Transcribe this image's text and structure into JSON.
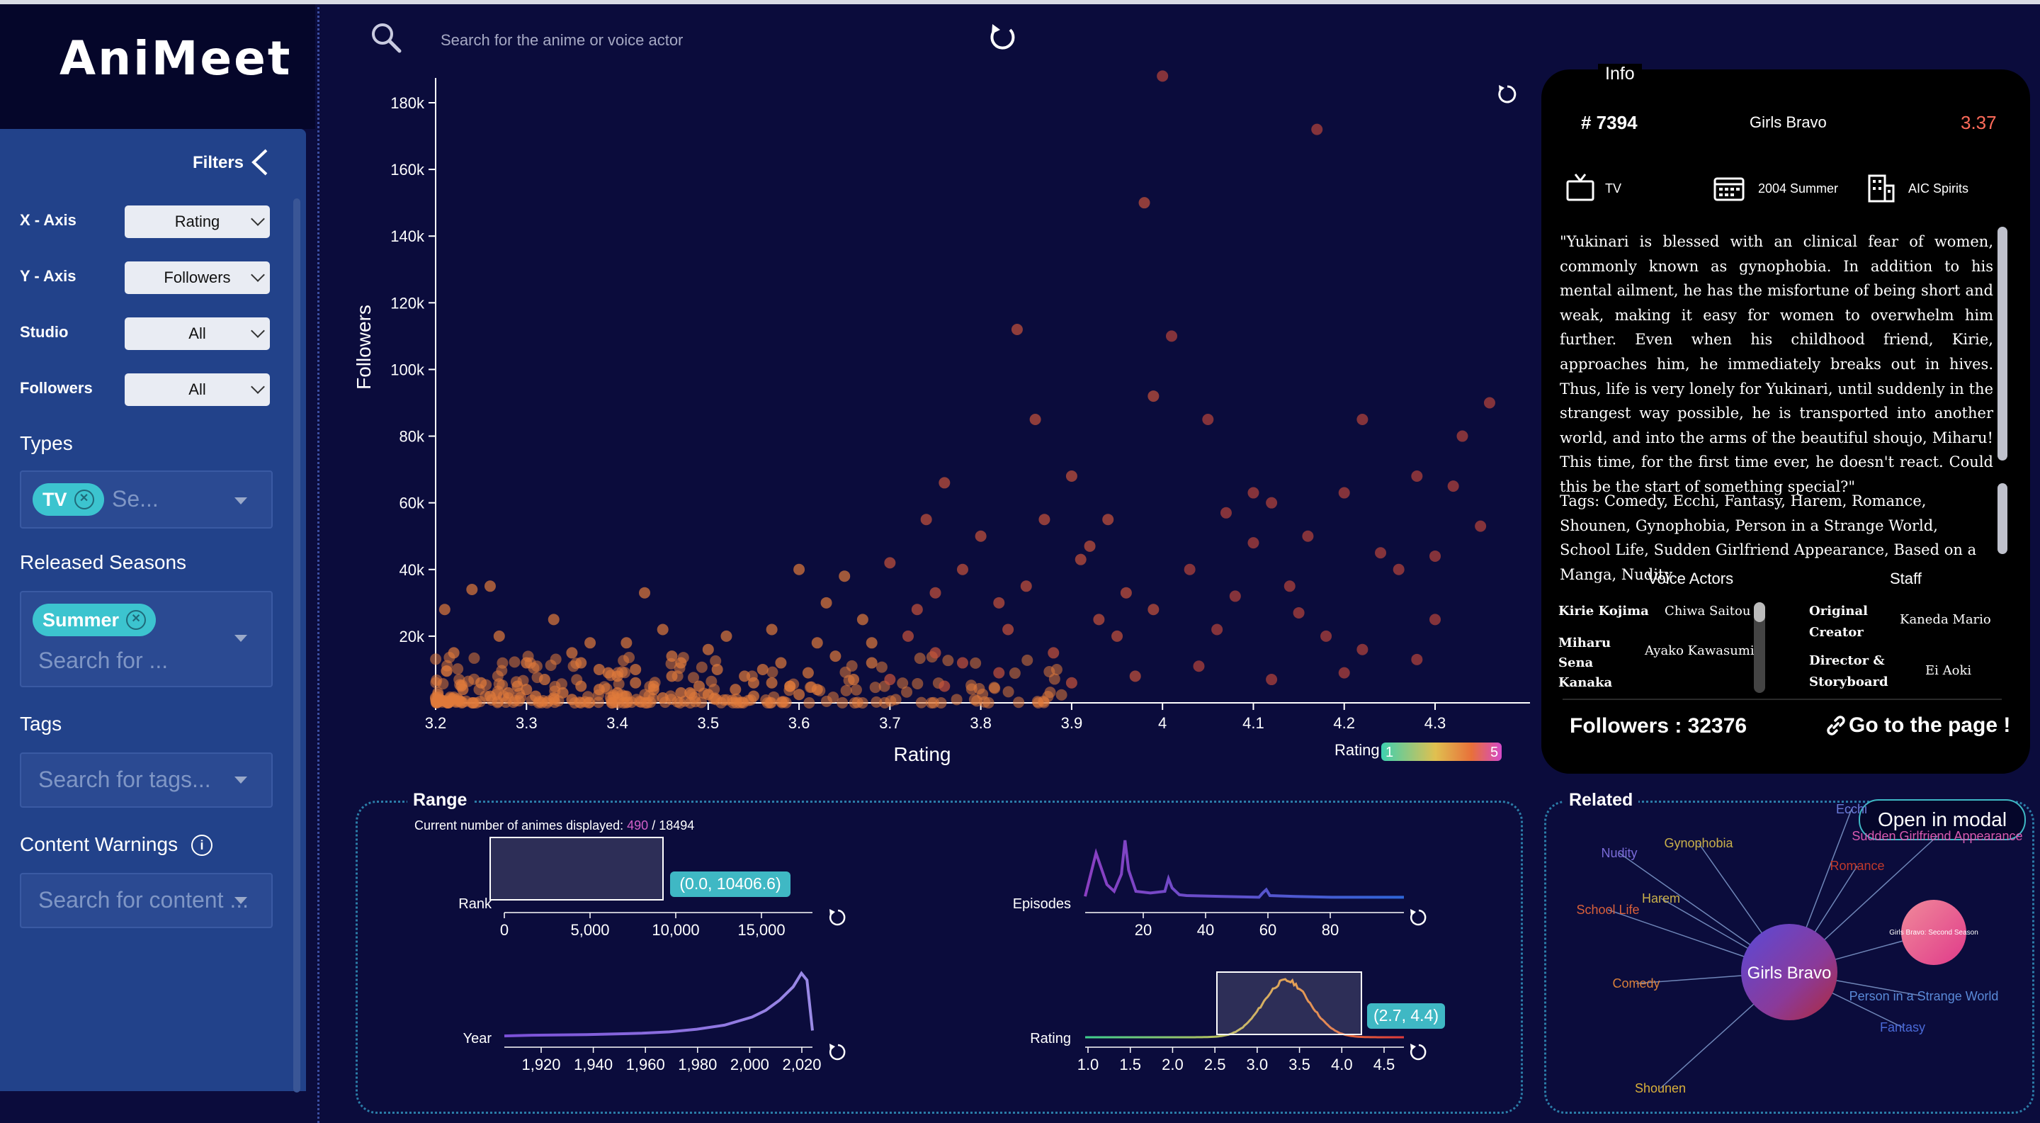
{
  "app": {
    "logo": "AniMeet"
  },
  "search": {
    "placeholder": "Search for the anime or voice actor"
  },
  "filters": {
    "title": "Filters",
    "x_axis": {
      "label": "X - Axis",
      "value": "Rating"
    },
    "y_axis": {
      "label": "Y - Axis",
      "value": "Followers"
    },
    "studio": {
      "label": "Studio",
      "value": "All"
    },
    "followers": {
      "label": "Followers",
      "value": "All"
    },
    "types": {
      "label": "Types",
      "chip": "TV",
      "placeholder": "Se..."
    },
    "seasons": {
      "label": "Released Seasons",
      "chip": "Summer",
      "placeholder": "Search for ..."
    },
    "tags": {
      "label": "Tags",
      "placeholder": "Search for tags..."
    },
    "warnings": {
      "label": "Content Warnings",
      "placeholder": "Search for content ..."
    }
  },
  "scatter": {
    "xlabel": "Rating",
    "ylabel": "Followers",
    "legend_label": "Rating",
    "legend_min": "1",
    "legend_max": "5"
  },
  "info": {
    "title": "Info",
    "rank": "# 7394",
    "name": "Girls Bravo",
    "score": "3.37",
    "type": "TV",
    "season": "2004 Summer",
    "studio": "AIC Spirits",
    "synopsis": "\"Yukinari is blessed with an clinical fear of women, commonly known as gynophobia. In addition to his mental ailment, he has the misfortune of being short and weak, making it easy for women to overwhelm him further. Even when his childhood friend, Kirie, approaches him, he immediately breaks out in hives. Thus, life is very lonely for Yukinari, until suddenly in the strangest way possible, he is transported into another world, and into the arms of the beautiful shoujo, Miharu! This time, for the first time ever, he doesn't react. Could this be the start of something special?\"",
    "tags": "Tags: Comedy, Ecchi, Fantasy, Harem, Romance, Shounen, Gynophobia, Person in a Strange World, School Life, Sudden Girlfriend Appearance, Based on a Manga, Nudity",
    "voice_actors_title": "Voice Actors",
    "staff_title": "Staff",
    "va1_char": "Kirie Kojima",
    "va1_actor": "Chiwa Saitou",
    "va2_char": "Miharu Sena Kanaka",
    "va2_actor": "Ayako Kawasumi",
    "staff1_role": "Original Creator",
    "staff1_name": "Kaneda Mario",
    "staff2_role": "Director & Storyboard",
    "staff2_name": "Ei Aoki",
    "followers": "Followers : 32376",
    "link": "Go to the page !"
  },
  "range": {
    "title": "Range",
    "count_prefix": "Current number of animes displayed: ",
    "count": "490",
    "total": " / 18494",
    "rank_label": "Rank",
    "rank_ticks": [
      "0",
      "5,000",
      "10,000",
      "15,000"
    ],
    "rank_selection": "(0.0, 10406.6)",
    "episodes_label": "Episodes",
    "episodes_ticks": [
      "20",
      "40",
      "60",
      "80"
    ],
    "year_label": "Year",
    "year_ticks": [
      "1,920",
      "1,940",
      "1,960",
      "1,980",
      "2,000",
      "2,020"
    ],
    "rating_label": "Rating",
    "rating_ticks": [
      "1.0",
      "1.5",
      "2.0",
      "2.5",
      "3.0",
      "3.5",
      "4.0",
      "4.5"
    ],
    "rating_selection": "(2.7, 4.4)"
  },
  "related": {
    "title": "Related",
    "open_modal": "Open in modal",
    "center": "Girls Bravo",
    "second": "Girls Bravo: Second Season",
    "tags": [
      {
        "label": "Ecchi",
        "color": "#6a7bd8"
      },
      {
        "label": "Nudity",
        "color": "#7a6bd8"
      },
      {
        "label": "Gynophobia",
        "color": "#c9b04a"
      },
      {
        "label": "Sudden Girlfriend Appearance",
        "color": "#d95ab0"
      },
      {
        "label": "Romance",
        "color": "#c0392b"
      },
      {
        "label": "Harem",
        "color": "#c9b04a"
      },
      {
        "label": "School Life",
        "color": "#d9603a"
      },
      {
        "label": "Comedy",
        "color": "#d9803a"
      },
      {
        "label": "Person in a Strange World",
        "color": "#5a8ad8"
      },
      {
        "label": "Fantasy",
        "color": "#4a6ad8"
      },
      {
        "label": "Shounen",
        "color": "#d9b03a"
      }
    ]
  },
  "chart_data": [
    {
      "type": "scatter",
      "xlabel": "Rating",
      "ylabel": "Followers",
      "xlim": [
        3.2,
        4.36
      ],
      "ylim": [
        0,
        185000
      ],
      "x_ticks": [
        "3.2",
        "3.3",
        "3.4",
        "3.5",
        "3.6",
        "3.7",
        "3.8",
        "3.9",
        "4",
        "4.1",
        "4.2",
        "4.3"
      ],
      "y_ticks": [
        "20k",
        "40k",
        "60k",
        "80k",
        "100k",
        "120k",
        "140k",
        "160k",
        "180k"
      ],
      "points": [
        [
          3.21,
          28000
        ],
        [
          3.24,
          34000
        ],
        [
          3.26,
          35000
        ],
        [
          3.22,
          15000
        ],
        [
          3.27,
          20000
        ],
        [
          3.3,
          12000
        ],
        [
          3.33,
          25000
        ],
        [
          3.35,
          15000
        ],
        [
          3.37,
          18000
        ],
        [
          3.38,
          10000
        ],
        [
          3.41,
          18000
        ],
        [
          3.43,
          33000
        ],
        [
          3.45,
          22000
        ],
        [
          3.47,
          12000
        ],
        [
          3.5,
          16000
        ],
        [
          3.52,
          20000
        ],
        [
          3.54,
          8000
        ],
        [
          3.56,
          10000
        ],
        [
          3.57,
          22000
        ],
        [
          3.6,
          40000
        ],
        [
          3.62,
          18000
        ],
        [
          3.63,
          30000
        ],
        [
          3.65,
          38000
        ],
        [
          3.67,
          25000
        ],
        [
          3.7,
          42000
        ],
        [
          3.72,
          20000
        ],
        [
          3.74,
          55000
        ],
        [
          3.75,
          15000
        ],
        [
          3.76,
          66000
        ],
        [
          3.78,
          40000
        ],
        [
          3.8,
          50000
        ],
        [
          3.82,
          30000
        ],
        [
          3.84,
          112000
        ],
        [
          3.86,
          85000
        ],
        [
          3.87,
          55000
        ],
        [
          3.9,
          68000
        ],
        [
          3.91,
          43000
        ],
        [
          3.93,
          25000
        ],
        [
          3.94,
          55000
        ],
        [
          3.96,
          33000
        ],
        [
          3.98,
          150000
        ],
        [
          3.99,
          92000
        ],
        [
          4.0,
          188000
        ],
        [
          4.01,
          110000
        ],
        [
          4.03,
          40000
        ],
        [
          4.05,
          85000
        ],
        [
          4.07,
          57000
        ],
        [
          4.1,
          63000
        ],
        [
          4.1,
          48000
        ],
        [
          4.12,
          60000
        ],
        [
          4.14,
          35000
        ],
        [
          4.16,
          50000
        ],
        [
          4.17,
          172000
        ],
        [
          4.18,
          20000
        ],
        [
          4.2,
          63000
        ],
        [
          4.22,
          85000
        ],
        [
          4.24,
          45000
        ],
        [
          4.26,
          40000
        ],
        [
          4.28,
          68000
        ],
        [
          4.3,
          44000
        ],
        [
          4.32,
          65000
        ],
        [
          4.33,
          80000
        ],
        [
          4.35,
          53000
        ],
        [
          4.36,
          90000
        ],
        [
          3.95,
          20000
        ],
        [
          3.88,
          15000
        ],
        [
          3.83,
          22000
        ],
        [
          3.78,
          12000
        ],
        [
          3.73,
          28000
        ],
        [
          3.68,
          12000
        ],
        [
          3.66,
          7000
        ],
        [
          3.64,
          14000
        ],
        [
          3.61,
          9000
        ],
        [
          3.59,
          5000
        ],
        [
          3.58,
          12000
        ],
        [
          3.55,
          6000
        ],
        [
          3.53,
          4000
        ],
        [
          3.51,
          10000
        ],
        [
          3.49,
          5000
        ],
        [
          3.48,
          3000
        ],
        [
          3.46,
          8000
        ],
        [
          3.44,
          4000
        ],
        [
          3.42,
          6000
        ],
        [
          3.4,
          3000
        ],
        [
          3.39,
          9000
        ],
        [
          3.36,
          5000
        ],
        [
          3.34,
          3000
        ],
        [
          3.32,
          7000
        ],
        [
          3.31,
          2000
        ],
        [
          3.29,
          5000
        ],
        [
          3.28,
          3000
        ],
        [
          3.25,
          6000
        ],
        [
          3.23,
          4000
        ],
        [
          3.41,
          2000
        ],
        [
          3.45,
          1500
        ],
        [
          3.35,
          1000
        ],
        [
          3.44,
          5000
        ],
        [
          3.5,
          2500
        ],
        [
          3.38,
          4000
        ],
        [
          3.47,
          3000
        ],
        [
          3.3,
          4000
        ],
        [
          3.26,
          2000
        ],
        [
          3.33,
          1500
        ],
        [
          3.55,
          2000
        ],
        [
          3.6,
          2500
        ],
        [
          3.42,
          10000
        ],
        [
          3.36,
          12000
        ],
        [
          3.46,
          14000
        ],
        [
          3.4,
          8000
        ],
        [
          3.57,
          6000
        ],
        [
          3.62,
          4000
        ],
        [
          3.7,
          7000
        ],
        [
          3.76,
          5000
        ],
        [
          3.82,
          9000
        ],
        [
          3.9,
          6000
        ],
        [
          3.97,
          8000
        ],
        [
          4.04,
          11000
        ],
        [
          4.12,
          7000
        ],
        [
          4.2,
          9000
        ],
        [
          4.28,
          13000
        ],
        [
          3.85,
          35000
        ],
        [
          3.92,
          47000
        ],
        [
          4.08,
          32000
        ],
        [
          4.15,
          27000
        ],
        [
          4.22,
          16000
        ],
        [
          4.3,
          25000
        ],
        [
          3.75,
          33000
        ],
        [
          3.68,
          18000
        ],
        [
          3.99,
          28000
        ],
        [
          4.06,
          22000
        ]
      ]
    },
    {
      "type": "area",
      "title": "Rank",
      "xlim": [
        0,
        18494
      ],
      "selection": [
        0.0,
        10406.6
      ]
    },
    {
      "type": "line",
      "title": "Episodes",
      "x": [
        2,
        5,
        8,
        10,
        12,
        13,
        14,
        16,
        20,
        24,
        25,
        26,
        28,
        30,
        40,
        50,
        51,
        52,
        53,
        60,
        70,
        80,
        90
      ],
      "y": [
        4,
        55,
        18,
        10,
        30,
        70,
        35,
        10,
        8,
        10,
        25,
        14,
        6,
        5,
        4,
        3,
        8,
        12,
        5,
        4,
        3,
        3,
        3
      ]
    },
    {
      "type": "line",
      "title": "Year",
      "x": [
        1910,
        1920,
        1940,
        1960,
        1970,
        1980,
        1990,
        2000,
        2005,
        2010,
        2015,
        2018,
        2020,
        2022
      ],
      "y": [
        2,
        3,
        4,
        6,
        8,
        12,
        18,
        30,
        40,
        55,
        75,
        95,
        85,
        10
      ]
    },
    {
      "type": "area",
      "title": "Rating",
      "xlim": [
        1.0,
        4.8
      ],
      "selection": [
        2.7,
        4.4
      ]
    }
  ]
}
